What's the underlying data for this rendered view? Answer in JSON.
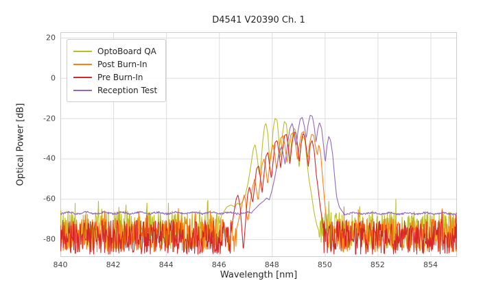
{
  "chart_data": {
    "type": "line",
    "title": "D4541 V20390 Ch. 1",
    "xlabel": "Wavelength [nm]",
    "ylabel": "Optical Power [dB]",
    "xlim": [
      840,
      855
    ],
    "ylim": [
      -88.8,
      22.7
    ],
    "xticks": [
      840,
      842,
      844,
      846,
      848,
      850,
      852,
      854
    ],
    "yticks": [
      20,
      0,
      -20,
      -40,
      -60,
      -80
    ],
    "grid": true,
    "legend_position": "upper left",
    "series": [
      {
        "name": "OptoBoard QA",
        "color": "#bcbd22",
        "noise_regions": [
          {
            "x0": 840.0,
            "x1": 846.0,
            "base": -75.5,
            "amp": 9.5
          },
          {
            "x0": 849.78,
            "x1": 855.05,
            "base": -75.5,
            "amp": 9.5
          }
        ],
        "points": [
          [
            846.0,
            -73
          ],
          [
            846.1,
            -68
          ],
          [
            846.2,
            -66
          ],
          [
            846.3,
            -64
          ],
          [
            846.45,
            -63
          ],
          [
            846.6,
            -64
          ],
          [
            846.7,
            -62
          ],
          [
            846.8,
            -63
          ],
          [
            846.9,
            -61
          ],
          [
            847.0,
            -58
          ],
          [
            847.1,
            -52
          ],
          [
            847.2,
            -44
          ],
          [
            847.3,
            -35
          ],
          [
            847.37,
            -33
          ],
          [
            847.45,
            -40
          ],
          [
            847.52,
            -48
          ],
          [
            847.58,
            -44
          ],
          [
            847.65,
            -32
          ],
          [
            847.72,
            -24
          ],
          [
            847.78,
            -22.5
          ],
          [
            847.85,
            -28
          ],
          [
            847.92,
            -42
          ],
          [
            847.98,
            -38
          ],
          [
            848.05,
            -25
          ],
          [
            848.12,
            -20
          ],
          [
            848.2,
            -21
          ],
          [
            848.28,
            -33
          ],
          [
            848.33,
            -40
          ],
          [
            848.4,
            -28
          ],
          [
            848.47,
            -21.5
          ],
          [
            848.55,
            -23
          ],
          [
            848.63,
            -34
          ],
          [
            848.68,
            -42
          ],
          [
            848.75,
            -30
          ],
          [
            848.83,
            -25
          ],
          [
            848.9,
            -26
          ],
          [
            848.98,
            -36
          ],
          [
            849.03,
            -45
          ],
          [
            849.1,
            -33
          ],
          [
            849.18,
            -29
          ],
          [
            849.25,
            -31
          ],
          [
            849.33,
            -42
          ],
          [
            849.4,
            -50
          ],
          [
            849.5,
            -58
          ],
          [
            849.6,
            -67
          ],
          [
            849.7,
            -73
          ],
          [
            849.78,
            -76
          ]
        ]
      },
      {
        "name": "Post Burn-In",
        "color": "#ff7f0e",
        "noise_regions": [
          {
            "x0": 840.0,
            "x1": 846.65,
            "base": -78,
            "amp": 8.5
          },
          {
            "x0": 850.12,
            "x1": 855.05,
            "base": -78,
            "amp": 8.5
          }
        ],
        "points": [
          [
            846.65,
            -76
          ],
          [
            846.75,
            -70
          ],
          [
            846.85,
            -64
          ],
          [
            846.95,
            -58
          ],
          [
            847.0,
            -60
          ],
          [
            847.05,
            -68
          ],
          [
            847.1,
            -71
          ],
          [
            847.18,
            -62
          ],
          [
            847.27,
            -54
          ],
          [
            847.35,
            -50
          ],
          [
            847.42,
            -56
          ],
          [
            847.48,
            -61
          ],
          [
            847.55,
            -52
          ],
          [
            847.63,
            -43
          ],
          [
            847.7,
            -40
          ],
          [
            847.78,
            -46
          ],
          [
            847.84,
            -53
          ],
          [
            847.9,
            -45
          ],
          [
            847.98,
            -36
          ],
          [
            848.05,
            -33
          ],
          [
            848.12,
            -39
          ],
          [
            848.18,
            -46
          ],
          [
            848.25,
            -38
          ],
          [
            848.33,
            -30
          ],
          [
            848.42,
            -28.5
          ],
          [
            848.5,
            -34
          ],
          [
            848.57,
            -42
          ],
          [
            848.63,
            -35
          ],
          [
            848.72,
            -28
          ],
          [
            848.82,
            -27
          ],
          [
            848.9,
            -33
          ],
          [
            848.97,
            -41
          ],
          [
            849.03,
            -34
          ],
          [
            849.12,
            -27.5
          ],
          [
            849.2,
            -26.5
          ],
          [
            849.28,
            -33
          ],
          [
            849.35,
            -40
          ],
          [
            849.42,
            -33
          ],
          [
            849.5,
            -28
          ],
          [
            849.58,
            -28.5
          ],
          [
            849.65,
            -34
          ],
          [
            849.72,
            -38
          ],
          [
            849.78,
            -33
          ],
          [
            849.85,
            -38
          ],
          [
            849.92,
            -50
          ],
          [
            850.0,
            -62
          ],
          [
            850.08,
            -72
          ],
          [
            850.12,
            -77
          ]
        ]
      },
      {
        "name": "Pre Burn-In",
        "color": "#d62728",
        "noise_regions": [
          {
            "x0": 840.0,
            "x1": 846.45,
            "base": -79,
            "amp": 8.5
          },
          {
            "x0": 849.95,
            "x1": 855.05,
            "base": -79,
            "amp": 8.5
          }
        ],
        "points": [
          [
            846.45,
            -77
          ],
          [
            846.55,
            -68
          ],
          [
            846.65,
            -60
          ],
          [
            846.72,
            -58
          ],
          [
            846.8,
            -64
          ],
          [
            846.87,
            -76
          ],
          [
            846.92,
            -86
          ],
          [
            847.0,
            -72
          ],
          [
            847.08,
            -58
          ],
          [
            847.15,
            -54
          ],
          [
            847.22,
            -58
          ],
          [
            847.28,
            -62
          ],
          [
            847.35,
            -53
          ],
          [
            847.42,
            -45
          ],
          [
            847.5,
            -43.5
          ],
          [
            847.57,
            -50
          ],
          [
            847.63,
            -57
          ],
          [
            847.7,
            -48
          ],
          [
            847.78,
            -38.5
          ],
          [
            847.85,
            -37
          ],
          [
            847.92,
            -44
          ],
          [
            847.98,
            -50
          ],
          [
            848.05,
            -41
          ],
          [
            848.12,
            -32
          ],
          [
            848.2,
            -31
          ],
          [
            848.28,
            -38
          ],
          [
            848.33,
            -45
          ],
          [
            848.4,
            -36
          ],
          [
            848.48,
            -28.5
          ],
          [
            848.55,
            -28
          ],
          [
            848.63,
            -35
          ],
          [
            848.68,
            -43
          ],
          [
            848.75,
            -34
          ],
          [
            848.83,
            -27
          ],
          [
            848.9,
            -27
          ],
          [
            848.98,
            -34
          ],
          [
            849.03,
            -42
          ],
          [
            849.1,
            -33
          ],
          [
            849.17,
            -27.5
          ],
          [
            849.25,
            -29
          ],
          [
            849.32,
            -37
          ],
          [
            849.38,
            -44
          ],
          [
            849.45,
            -33
          ],
          [
            849.52,
            -31
          ],
          [
            849.6,
            -36
          ],
          [
            849.68,
            -48
          ],
          [
            849.75,
            -55
          ],
          [
            849.82,
            -63
          ],
          [
            849.9,
            -70
          ],
          [
            849.95,
            -76
          ]
        ]
      },
      {
        "name": "Reception Test",
        "color": "#9467bd",
        "noise_regions": [
          {
            "x0": 840.0,
            "x1": 847.25,
            "base": -67,
            "amp": 0.9
          },
          {
            "x0": 850.7,
            "x1": 855.05,
            "base": -67.2,
            "amp": 0.9
          }
        ],
        "points": [
          [
            847.25,
            -66.5
          ],
          [
            847.4,
            -64.5
          ],
          [
            847.55,
            -62.5
          ],
          [
            847.7,
            -61
          ],
          [
            847.8,
            -59.5
          ],
          [
            847.9,
            -60.5
          ],
          [
            848.0,
            -56
          ],
          [
            848.1,
            -50
          ],
          [
            848.2,
            -43
          ],
          [
            848.3,
            -36
          ],
          [
            848.37,
            -34
          ],
          [
            848.45,
            -39
          ],
          [
            848.5,
            -43
          ],
          [
            848.58,
            -34
          ],
          [
            848.68,
            -25
          ],
          [
            848.77,
            -22.5
          ],
          [
            848.85,
            -27
          ],
          [
            848.92,
            -34
          ],
          [
            848.98,
            -27
          ],
          [
            849.07,
            -20.5
          ],
          [
            849.15,
            -19.5
          ],
          [
            849.23,
            -24
          ],
          [
            849.3,
            -30
          ],
          [
            849.37,
            -23
          ],
          [
            849.45,
            -18.5
          ],
          [
            849.53,
            -19
          ],
          [
            849.6,
            -24
          ],
          [
            849.67,
            -32
          ],
          [
            849.73,
            -26
          ],
          [
            849.8,
            -22
          ],
          [
            849.88,
            -25
          ],
          [
            849.95,
            -33
          ],
          [
            850.02,
            -42
          ],
          [
            850.08,
            -34
          ],
          [
            850.15,
            -29
          ],
          [
            850.22,
            -31
          ],
          [
            850.3,
            -38
          ],
          [
            850.38,
            -50
          ],
          [
            850.45,
            -59
          ],
          [
            850.55,
            -64
          ],
          [
            850.65,
            -66
          ],
          [
            850.7,
            -66.8
          ]
        ]
      }
    ]
  }
}
